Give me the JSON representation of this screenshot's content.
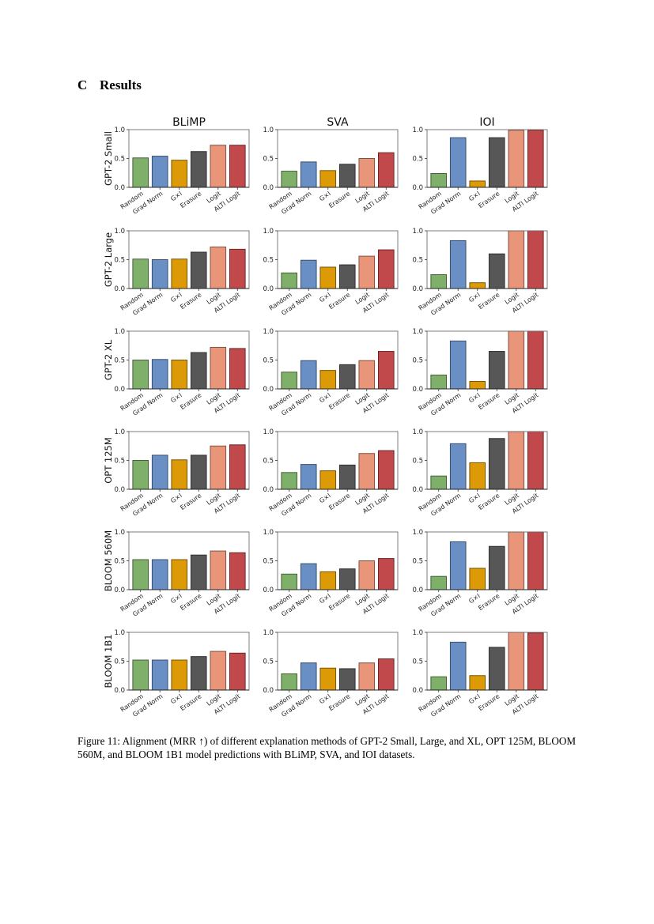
{
  "section": {
    "number": "C",
    "title": "Results"
  },
  "caption": "Figure 11: Alignment (MRR ↑) of different explanation methods of GPT-2 Small, Large, and XL, OPT 125M, BLOOM 560M, and BLOOM 1B1 model predictions with BLiMP, SVA, and IOI datasets.",
  "colors": {
    "Random": "#7fb069",
    "Grad Norm": "#6a8fc4",
    "G×I": "#dd9a07",
    "Erasure": "#575757",
    "Logit": "#e9957a",
    "ALTI Logit": "#c2494b"
  },
  "chart_data": {
    "type": "bar",
    "layout": "grid 6 rows x 3 columns",
    "columns": [
      "BLiMP",
      "SVA",
      "IOI"
    ],
    "rows": [
      "GPT-2 Small",
      "GPT-2 Large",
      "GPT-2 XL",
      "OPT 125M",
      "BLOOM 560M",
      "BLOOM 1B1"
    ],
    "categories": [
      "Random",
      "Grad Norm",
      "G×I",
      "Erasure",
      "Logit",
      "ALTI Logit"
    ],
    "ylim": [
      0,
      1
    ],
    "yticks": [
      "0.0",
      "0.5",
      "1.0"
    ],
    "grid": false,
    "panels": [
      {
        "row": "GPT-2 Small",
        "column": "BLiMP",
        "values": [
          0.51,
          0.54,
          0.47,
          0.62,
          0.73,
          0.73
        ]
      },
      {
        "row": "GPT-2 Small",
        "column": "SVA",
        "values": [
          0.28,
          0.44,
          0.29,
          0.4,
          0.5,
          0.6
        ]
      },
      {
        "row": "GPT-2 Small",
        "column": "IOI",
        "values": [
          0.24,
          0.86,
          0.11,
          0.86,
          0.99,
          0.99
        ]
      },
      {
        "row": "GPT-2 Large",
        "column": "BLiMP",
        "values": [
          0.51,
          0.5,
          0.51,
          0.63,
          0.72,
          0.68
        ]
      },
      {
        "row": "GPT-2 Large",
        "column": "SVA",
        "values": [
          0.27,
          0.49,
          0.37,
          0.41,
          0.56,
          0.67
        ]
      },
      {
        "row": "GPT-2 Large",
        "column": "IOI",
        "values": [
          0.24,
          0.83,
          0.1,
          0.6,
          1.0,
          1.0
        ]
      },
      {
        "row": "GPT-2 XL",
        "column": "BLiMP",
        "values": [
          0.5,
          0.51,
          0.5,
          0.63,
          0.72,
          0.7
        ]
      },
      {
        "row": "GPT-2 XL",
        "column": "SVA",
        "values": [
          0.29,
          0.49,
          0.32,
          0.42,
          0.49,
          0.65
        ]
      },
      {
        "row": "GPT-2 XL",
        "column": "IOI",
        "values": [
          0.24,
          0.83,
          0.13,
          0.65,
          1.0,
          1.0
        ]
      },
      {
        "row": "OPT 125M",
        "column": "BLiMP",
        "values": [
          0.5,
          0.59,
          0.51,
          0.59,
          0.75,
          0.77
        ]
      },
      {
        "row": "OPT 125M",
        "column": "SVA",
        "values": [
          0.29,
          0.43,
          0.32,
          0.42,
          0.62,
          0.67
        ]
      },
      {
        "row": "OPT 125M",
        "column": "IOI",
        "values": [
          0.23,
          0.79,
          0.46,
          0.88,
          1.0,
          1.0
        ]
      },
      {
        "row": "BLOOM 560M",
        "column": "BLiMP",
        "values": [
          0.52,
          0.52,
          0.52,
          0.6,
          0.67,
          0.64
        ]
      },
      {
        "row": "BLOOM 560M",
        "column": "SVA",
        "values": [
          0.27,
          0.45,
          0.31,
          0.36,
          0.5,
          0.54
        ]
      },
      {
        "row": "BLOOM 560M",
        "column": "IOI",
        "values": [
          0.23,
          0.83,
          0.37,
          0.75,
          1.0,
          1.0
        ]
      },
      {
        "row": "BLOOM 1B1",
        "column": "BLiMP",
        "values": [
          0.52,
          0.52,
          0.52,
          0.58,
          0.67,
          0.64
        ]
      },
      {
        "row": "BLOOM 1B1",
        "column": "SVA",
        "values": [
          0.28,
          0.47,
          0.38,
          0.37,
          0.47,
          0.54
        ]
      },
      {
        "row": "BLOOM 1B1",
        "column": "IOI",
        "values": [
          0.23,
          0.83,
          0.25,
          0.74,
          1.0,
          0.99
        ]
      }
    ]
  }
}
